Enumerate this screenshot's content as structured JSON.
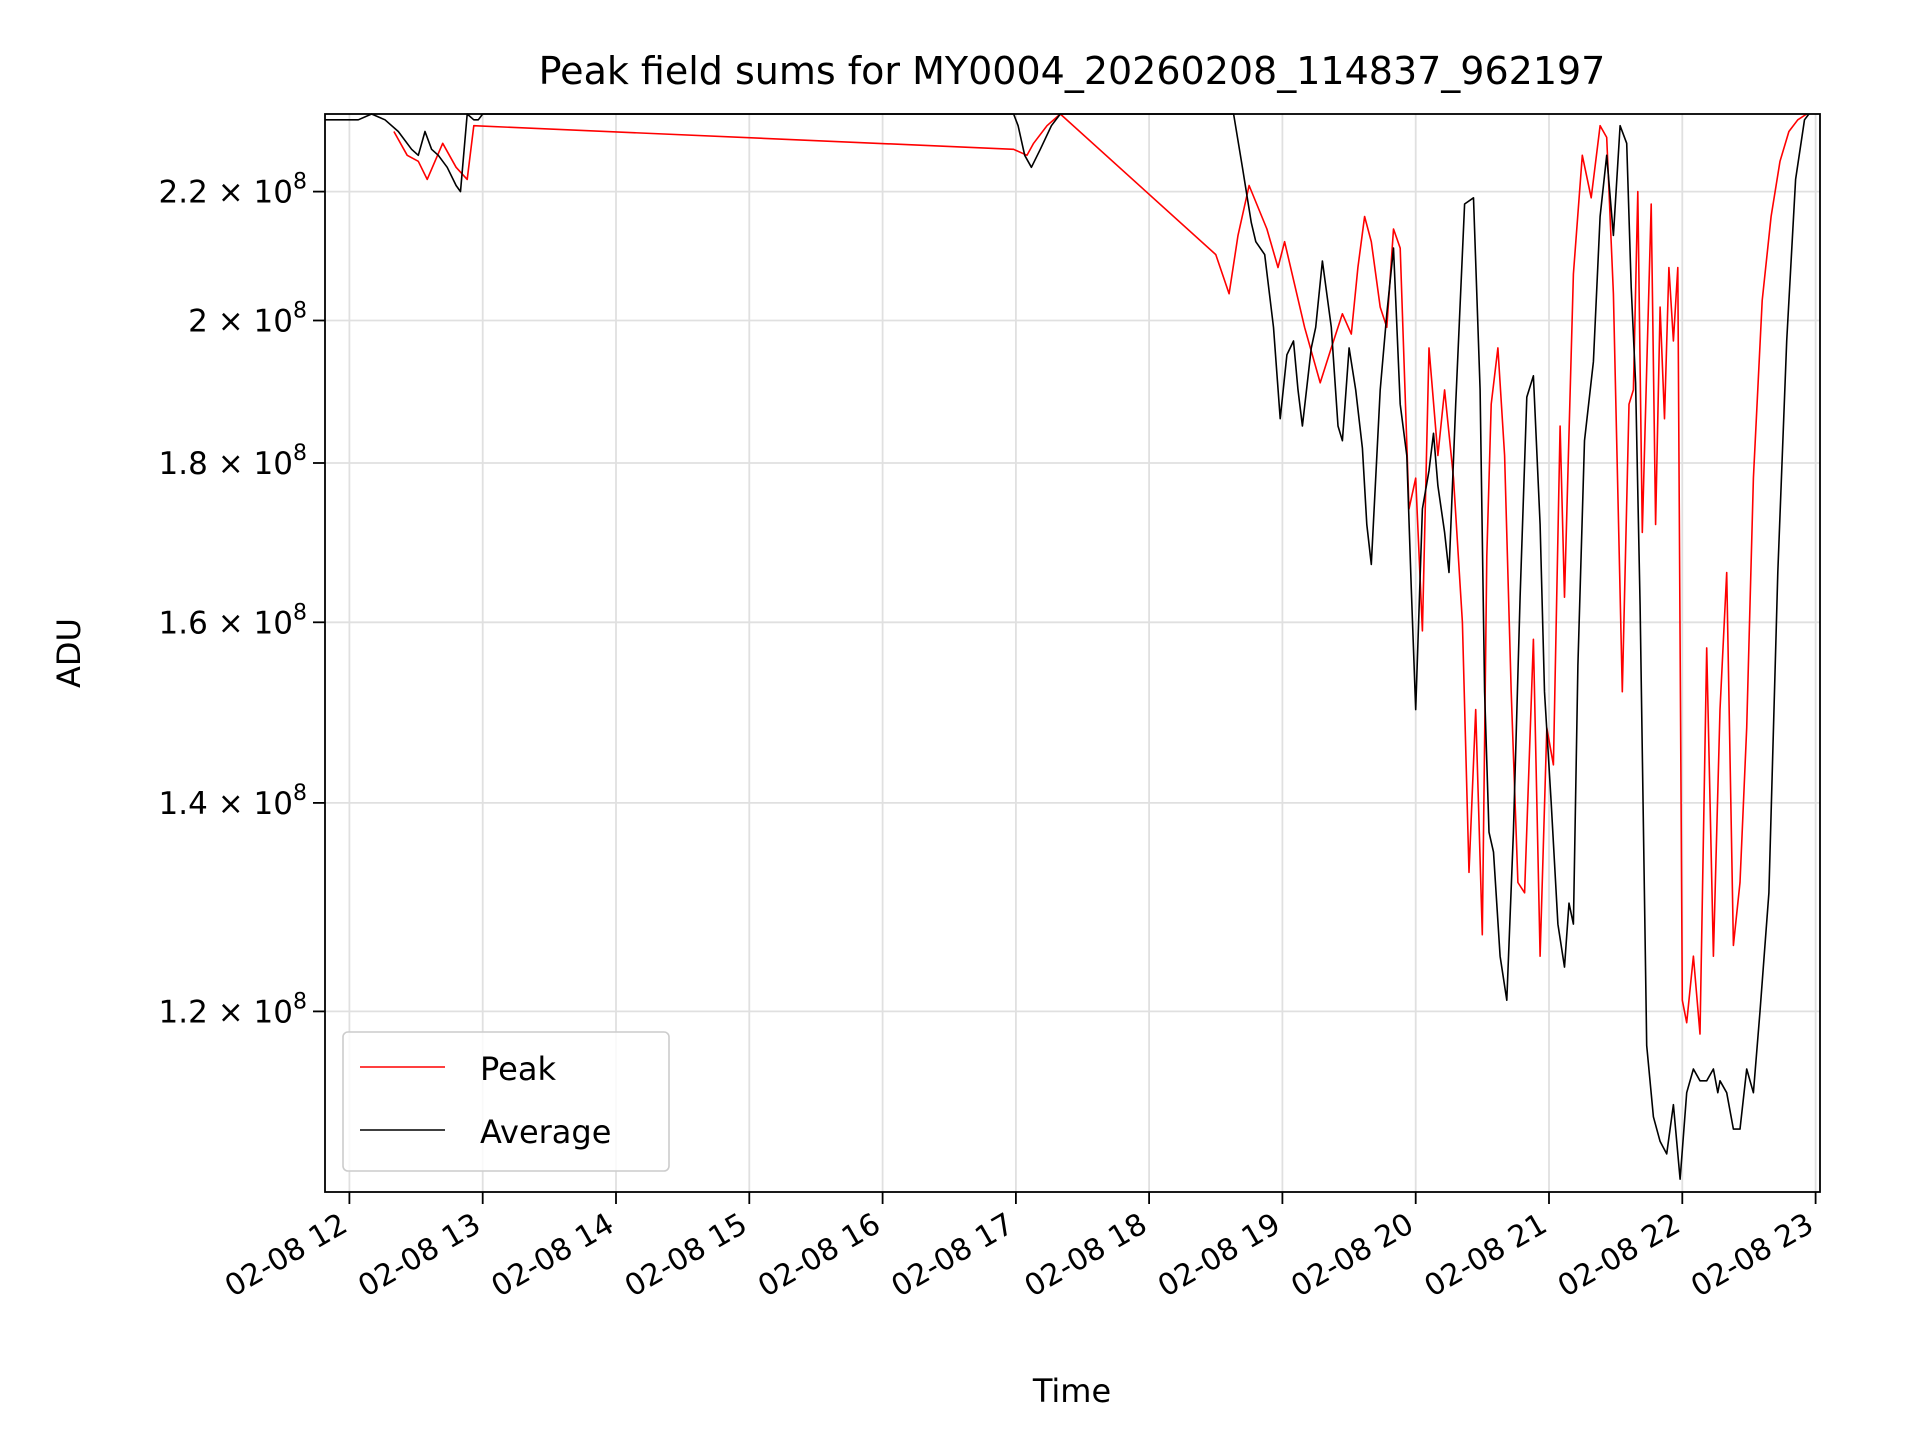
{
  "chart_data": {
    "type": "line",
    "title": "Peak field sums for MY0004_20260208_114837_962197",
    "xlabel": "Time",
    "ylabel": "ADU",
    "xlim": [
      "02-08 11:49",
      "02-08 23:02"
    ],
    "ylim": [
      105000000,
      233000000
    ],
    "yscale": "log",
    "grid": true,
    "legend_position": "lower-left",
    "x_ticks": [
      "02-08 12",
      "02-08 13",
      "02-08 14",
      "02-08 15",
      "02-08 16",
      "02-08 17",
      "02-08 18",
      "02-08 19",
      "02-08 20",
      "02-08 21",
      "02-08 22",
      "02-08 23"
    ],
    "y_ticks": [
      {
        "value": 120000000,
        "mantissa": "1.2",
        "exponent": "8"
      },
      {
        "value": 140000000,
        "mantissa": "1.4",
        "exponent": "8"
      },
      {
        "value": 160000000,
        "mantissa": "1.6",
        "exponent": "8"
      },
      {
        "value": 180000000,
        "mantissa": "1.8",
        "exponent": "8"
      },
      {
        "value": 200000000,
        "mantissa": "2",
        "exponent": "8"
      },
      {
        "value": 220000000,
        "mantissa": "2.2",
        "exponent": "8"
      }
    ],
    "series": [
      {
        "name": "Peak",
        "color": "#ff0000",
        "x": [
          "02-08 12:20",
          "02-08 12:26",
          "02-08 12:31",
          "02-08 12:35",
          "02-08 12:42",
          "02-08 12:48",
          "02-08 12:53",
          "02-08 12:56",
          "02-08 16:59",
          "02-08 17:05",
          "02-08 17:08",
          "02-08 17:14",
          "02-08 17:20",
          "02-08 18:30",
          "02-08 18:36",
          "02-08 18:40",
          "02-08 18:45",
          "02-08 18:53",
          "02-08 18:58",
          "02-08 19:01",
          "02-08 19:10",
          "02-08 19:17",
          "02-08 19:22",
          "02-08 19:27",
          "02-08 19:31",
          "02-08 19:34",
          "02-08 19:37",
          "02-08 19:40",
          "02-08 19:44",
          "02-08 19:47",
          "02-08 19:50",
          "02-08 19:53",
          "02-08 19:57",
          "02-08 20:00",
          "02-08 20:03",
          "02-08 20:06",
          "02-08 20:10",
          "02-08 20:13",
          "02-08 20:17",
          "02-08 20:21",
          "02-08 20:24",
          "02-08 20:27",
          "02-08 20:30",
          "02-08 20:32",
          "02-08 20:34",
          "02-08 20:37",
          "02-08 20:40",
          "02-08 20:43",
          "02-08 20:46",
          "02-08 20:49",
          "02-08 20:53",
          "02-08 20:56",
          "02-08 20:59",
          "02-08 21:02",
          "02-08 21:05",
          "02-08 21:07",
          "02-08 21:11",
          "02-08 21:15",
          "02-08 21:19",
          "02-08 21:23",
          "02-08 21:26",
          "02-08 21:29",
          "02-08 21:33",
          "02-08 21:36",
          "02-08 21:38",
          "02-08 21:40",
          "02-08 21:42",
          "02-08 21:44",
          "02-08 21:46",
          "02-08 21:48",
          "02-08 21:50",
          "02-08 21:52",
          "02-08 21:54",
          "02-08 21:56",
          "02-08 21:58",
          "02-08 22:00",
          "02-08 22:02",
          "02-08 22:05",
          "02-08 22:08",
          "02-08 22:11",
          "02-08 22:14",
          "02-08 22:17",
          "02-08 22:20",
          "02-08 22:23",
          "02-08 22:26",
          "02-08 22:29",
          "02-08 22:32",
          "02-08 22:36",
          "02-08 22:40",
          "02-08 22:44",
          "02-08 22:48",
          "02-08 22:52",
          "02-08 22:56"
        ],
        "values": [
          230000000,
          226000000,
          225000000,
          222000000,
          228000000,
          224000000,
          222000000,
          231000000,
          227000000,
          226000000,
          228000000,
          231000000,
          233000000,
          210000000,
          204000000,
          213000000,
          221000000,
          214000000,
          208000000,
          212000000,
          199000000,
          191000000,
          196000000,
          201000000,
          198000000,
          208000000,
          216000000,
          212000000,
          202000000,
          199000000,
          214000000,
          211000000,
          174000000,
          178000000,
          159000000,
          196000000,
          181000000,
          190000000,
          178000000,
          160000000,
          133000000,
          150000000,
          127000000,
          168000000,
          188000000,
          196000000,
          181000000,
          152000000,
          132000000,
          131000000,
          158000000,
          125000000,
          148000000,
          144000000,
          185000000,
          163000000,
          207000000,
          226000000,
          219000000,
          231000000,
          229000000,
          204000000,
          152000000,
          188000000,
          190000000,
          220000000,
          171000000,
          193000000,
          218000000,
          172000000,
          202000000,
          186000000,
          208000000,
          197000000,
          208000000,
          121000000,
          119000000,
          125000000,
          118000000,
          157000000,
          125000000,
          150000000,
          166000000,
          126000000,
          132000000,
          148000000,
          178000000,
          203000000,
          216000000,
          225000000,
          230000000,
          232000000,
          233000000
        ]
      },
      {
        "name": "Average",
        "color": "#000000",
        "x": [
          "02-08 11:49",
          "02-08 12:04",
          "02-08 12:10",
          "02-08 12:16",
          "02-08 12:22",
          "02-08 12:28",
          "02-08 12:31",
          "02-08 12:34",
          "02-08 12:37",
          "02-08 12:40",
          "02-08 12:44",
          "02-08 12:48",
          "02-08 12:50",
          "02-08 12:53",
          "02-08 12:56",
          "02-08 12:58",
          "02-08 13:00",
          "02-08 16:59",
          "02-08 17:01",
          "02-08 17:04",
          "02-08 17:07",
          "02-08 17:11",
          "02-08 17:16",
          "02-08 17:20",
          "02-08 17:23",
          "02-08 18:38",
          "02-08 18:42",
          "02-08 18:46",
          "02-08 18:48",
          "02-08 18:52",
          "02-08 18:56",
          "02-08 18:59",
          "02-08 19:02",
          "02-08 19:05",
          "02-08 19:07",
          "02-08 19:09",
          "02-08 19:13",
          "02-08 19:15",
          "02-08 19:18",
          "02-08 19:22",
          "02-08 19:25",
          "02-08 19:27",
          "02-08 19:30",
          "02-08 19:33",
          "02-08 19:36",
          "02-08 19:38",
          "02-08 19:40",
          "02-08 19:42",
          "02-08 19:44",
          "02-08 19:47",
          "02-08 19:50",
          "02-08 19:53",
          "02-08 19:56",
          "02-08 19:58",
          "02-08 20:00",
          "02-08 20:03",
          "02-08 20:06",
          "02-08 20:08",
          "02-08 20:10",
          "02-08 20:13",
          "02-08 20:15",
          "02-08 20:18",
          "02-08 20:22",
          "02-08 20:26",
          "02-08 20:29",
          "02-08 20:31",
          "02-08 20:33",
          "02-08 20:35",
          "02-08 20:38",
          "02-08 20:41",
          "02-08 20:44",
          "02-08 20:47",
          "02-08 20:50",
          "02-08 20:53",
          "02-08 20:56",
          "02-08 20:58",
          "02-08 21:01",
          "02-08 21:04",
          "02-08 21:07",
          "02-08 21:09",
          "02-08 21:11",
          "02-08 21:13",
          "02-08 21:16",
          "02-08 21:20",
          "02-08 21:23",
          "02-08 21:26",
          "02-08 21:29",
          "02-08 21:32",
          "02-08 21:35",
          "02-08 21:37",
          "02-08 21:39",
          "02-08 21:41",
          "02-08 21:44",
          "02-08 21:47",
          "02-08 21:50",
          "02-08 21:53",
          "02-08 21:56",
          "02-08 21:59",
          "02-08 22:02",
          "02-08 22:05",
          "02-08 22:08",
          "02-08 22:11",
          "02-08 22:14",
          "02-08 22:16",
          "02-08 22:17",
          "02-08 22:20",
          "02-08 22:23",
          "02-08 22:26",
          "02-08 22:29",
          "02-08 22:32",
          "02-08 22:35",
          "02-08 22:39",
          "02-08 22:43",
          "02-08 22:47",
          "02-08 22:51",
          "02-08 22:55",
          "02-08 22:57"
        ],
        "values": [
          232000000,
          232000000,
          233000000,
          232000000,
          230000000,
          227000000,
          226000000,
          230000000,
          227000000,
          226000000,
          224000000,
          221000000,
          220000000,
          233000000,
          232000000,
          232000000,
          233000000,
          233000000,
          231000000,
          226000000,
          224000000,
          227000000,
          231000000,
          233000000,
          233000000,
          233000000,
          224000000,
          215000000,
          212000000,
          210000000,
          199000000,
          186000000,
          195000000,
          197000000,
          190000000,
          185000000,
          196000000,
          199000000,
          209000000,
          199000000,
          185000000,
          183000000,
          196000000,
          190000000,
          182000000,
          172000000,
          167000000,
          178000000,
          190000000,
          201000000,
          211000000,
          188000000,
          181000000,
          164000000,
          150000000,
          174000000,
          179000000,
          184000000,
          177000000,
          171000000,
          166000000,
          188000000,
          218000000,
          219000000,
          190000000,
          152000000,
          137000000,
          135000000,
          125000000,
          121000000,
          137000000,
          163000000,
          189000000,
          192000000,
          172000000,
          152000000,
          140000000,
          128000000,
          124000000,
          130000000,
          128000000,
          155000000,
          183000000,
          194000000,
          216000000,
          226000000,
          213000000,
          231000000,
          228000000,
          205000000,
          191000000,
          162000000,
          117000000,
          111000000,
          109000000,
          108000000,
          112000000,
          106000000,
          113000000,
          115000000,
          114000000,
          114000000,
          115000000,
          113000000,
          114000000,
          113000000,
          110000000,
          110000000,
          115000000,
          113000000,
          120000000,
          131000000,
          166000000,
          197000000,
          222000000,
          232000000,
          233000000
        ]
      }
    ]
  }
}
